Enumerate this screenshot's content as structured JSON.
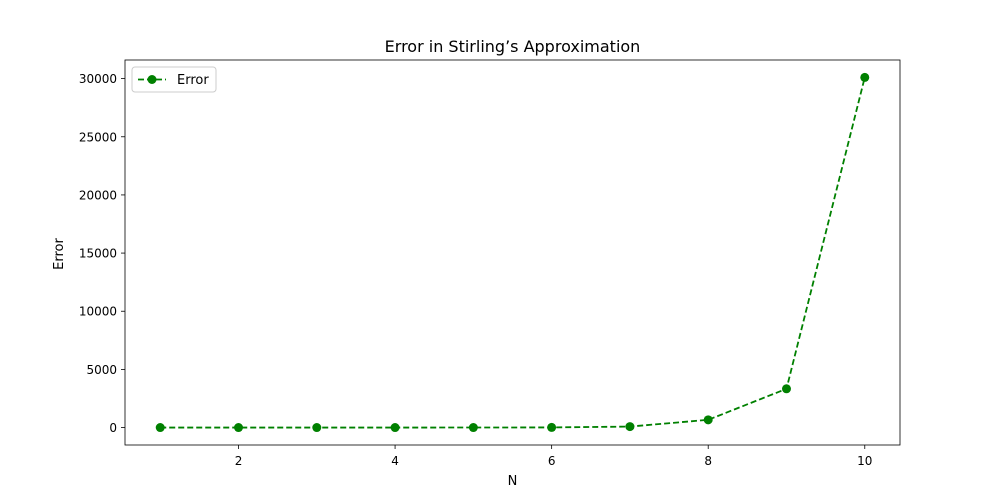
{
  "chart_data": {
    "type": "line",
    "title": "Error in Stirling’s Approximation",
    "xlabel": "N",
    "ylabel": "Error",
    "xlim": [
      0.55,
      10.45
    ],
    "ylim": [
      -1500,
      31600
    ],
    "xticks": [
      2,
      4,
      6,
      8,
      10
    ],
    "yticks": [
      0,
      5000,
      10000,
      15000,
      20000,
      25000,
      30000
    ],
    "grid": false,
    "legend_position": "top-left",
    "series": [
      {
        "name": "Error",
        "color": "#008000",
        "line_style": "dashed",
        "marker": "circle",
        "x": [
          1,
          2,
          3,
          4,
          5,
          6,
          7,
          8,
          9,
          10
        ],
        "y": [
          0.08,
          0.08,
          0.16,
          0.5,
          2.0,
          11.8,
          83.4,
          665.0,
          3331.0,
          30104.0
        ]
      }
    ]
  }
}
